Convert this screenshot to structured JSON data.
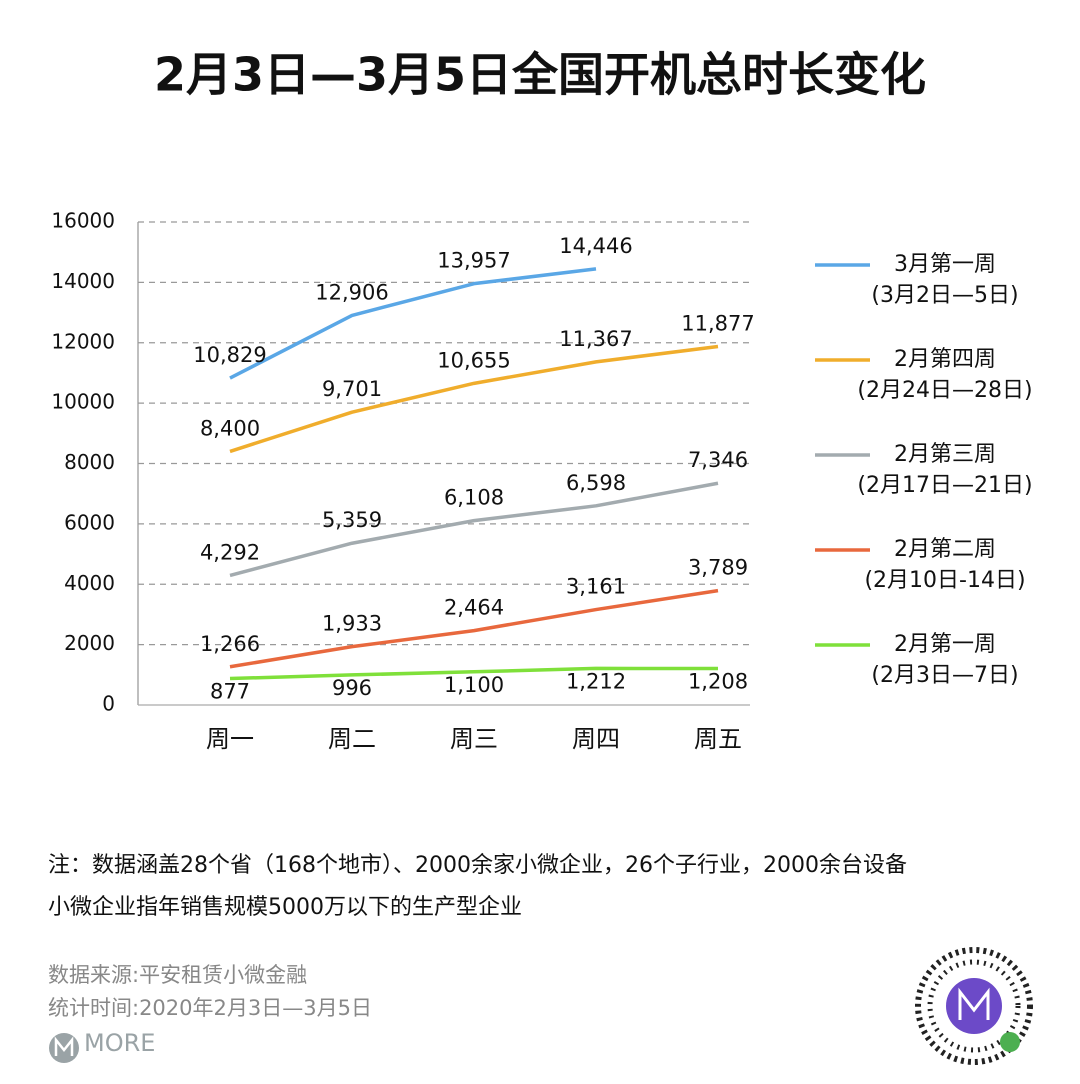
{
  "chart_data": {
    "type": "line",
    "title": "2月3日—3月5日全国开机总时长变化",
    "categories": [
      "周一",
      "周二",
      "周三",
      "周四",
      "周五"
    ],
    "ylim": [
      0,
      16000
    ],
    "yticks": [
      0,
      2000,
      4000,
      6000,
      8000,
      10000,
      12000,
      14000,
      16000
    ],
    "grid": true,
    "legend": "right",
    "series": [
      {
        "name": "3月第一周",
        "period": "(3月2日—5日)",
        "color": "#5aa7e6",
        "values": [
          10829,
          12906,
          13957,
          14446,
          null
        ],
        "value_labels": [
          "10,829",
          "12,906",
          "13,957",
          "14,446",
          null
        ]
      },
      {
        "name": "2月第四周",
        "period": "(2月24日—28日)",
        "color": "#f0ad2c",
        "values": [
          8400,
          9701,
          10655,
          11367,
          11877
        ],
        "value_labels": [
          "8,400",
          "9,701",
          "10,655",
          "11,367",
          "11,877"
        ]
      },
      {
        "name": "2月第三周",
        "period": "(2月17日—21日)",
        "color": "#a3abaf",
        "values": [
          4292,
          5359,
          6108,
          6598,
          7346
        ],
        "value_labels": [
          "4,292",
          "5,359",
          "6,108",
          "6,598",
          "7,346"
        ]
      },
      {
        "name": "2月第二周",
        "period": "(2月10日-14日)",
        "color": "#e8683d",
        "values": [
          1266,
          1933,
          2464,
          3161,
          3789
        ],
        "value_labels": [
          "1,266",
          "1,933",
          "2,464",
          "3,161",
          "3,789"
        ]
      },
      {
        "name": "2月第一周",
        "period": "(2月3日—7日)",
        "color": "#7fe03a",
        "values": [
          877,
          996,
          1100,
          1212,
          1208
        ],
        "value_labels": [
          "877",
          "996",
          "1,100",
          "1,212",
          "1,208"
        ]
      }
    ],
    "notes": [
      "注：数据涵盖28个省（168个地市）、2000余家小微企业，26个子行业，2000余台设备",
      "小微企业指年销售规模5000万以下的生产型企业"
    ],
    "source": [
      "数据来源:平安租赁小微金融",
      "统计时间:2020年2月3日—3月5日"
    ],
    "logo": "MORE"
  }
}
